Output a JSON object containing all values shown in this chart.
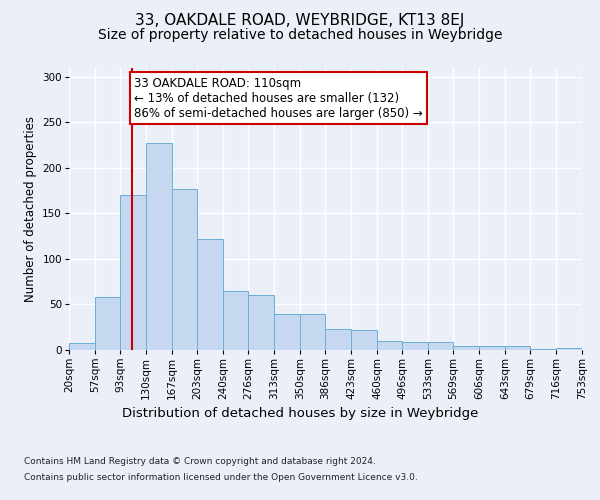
{
  "title1": "33, OAKDALE ROAD, WEYBRIDGE, KT13 8EJ",
  "title2": "Size of property relative to detached houses in Weybridge",
  "xlabel": "Distribution of detached houses by size in Weybridge",
  "ylabel": "Number of detached properties",
  "footer1": "Contains HM Land Registry data © Crown copyright and database right 2024.",
  "footer2": "Contains public sector information licensed under the Open Government Licence v3.0.",
  "bin_edges": [
    20,
    57,
    93,
    130,
    167,
    203,
    240,
    276,
    313,
    350,
    386,
    423,
    460,
    496,
    533,
    569,
    606,
    643,
    679,
    716,
    753
  ],
  "bar_heights": [
    8,
    58,
    170,
    227,
    177,
    122,
    65,
    60,
    40,
    40,
    23,
    22,
    10,
    9,
    9,
    4,
    4,
    4,
    1,
    2
  ],
  "bar_color": "#c5d8f0",
  "bar_edge_color": "#6baed6",
  "vline_x": 110,
  "vline_color": "#cc0000",
  "annotation_line1": "33 OAKDALE ROAD: 110sqm",
  "annotation_line2": "← 13% of detached houses are smaller (132)",
  "annotation_line3": "86% of semi-detached houses are larger (850) →",
  "annotation_box_color": "#ffffff",
  "annotation_box_edge_color": "#cc0000",
  "ylim": [
    0,
    310
  ],
  "yticks": [
    0,
    50,
    100,
    150,
    200,
    250,
    300
  ],
  "bg_color": "#eaeff8",
  "plot_bg_color": "#eaeff8",
  "grid_color": "#ffffff",
  "title1_fontsize": 11,
  "title2_fontsize": 10,
  "xlabel_fontsize": 9.5,
  "ylabel_fontsize": 8.5,
  "tick_fontsize": 7.5,
  "annotation_fontsize": 8.5
}
